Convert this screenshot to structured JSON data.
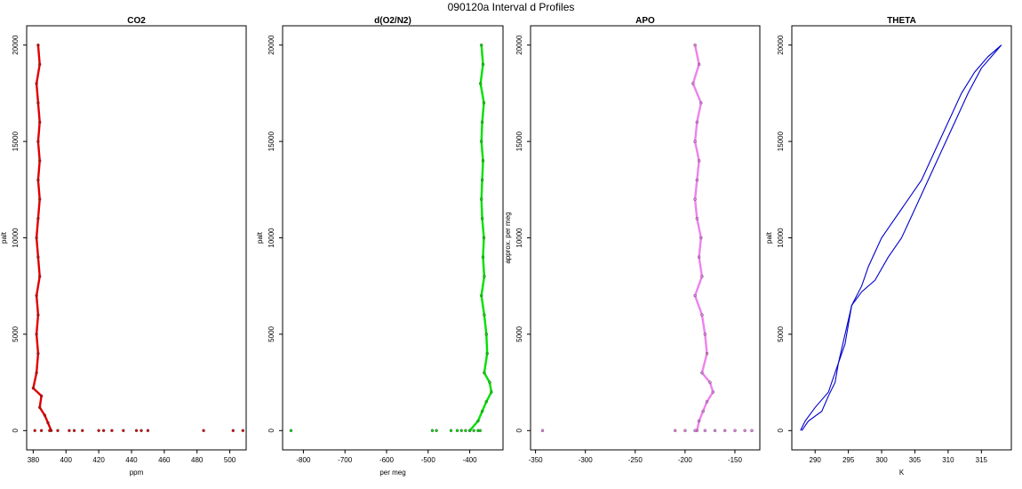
{
  "figure": {
    "title": "090120a   Interval d Profiles"
  },
  "chart_data": [
    {
      "type": "scatter",
      "title": "CO2",
      "xlabel": "ppm",
      "ylabel": "palt",
      "xlim": [
        376,
        510
      ],
      "ylim": [
        -1000,
        21000
      ],
      "xticks": [
        380,
        400,
        420,
        440,
        460,
        480,
        500
      ],
      "yticks": [
        0,
        5000,
        10000,
        15000,
        20000
      ],
      "color": "#e00000",
      "series": [
        {
          "values": [
            [
              383,
              20000
            ],
            [
              384,
              19000
            ],
            [
              382,
              18000
            ],
            [
              383,
              17000
            ],
            [
              384,
              16000
            ],
            [
              383,
              15000
            ],
            [
              384,
              14000
            ],
            [
              383,
              13000
            ],
            [
              384,
              12000
            ],
            [
              383,
              11000
            ],
            [
              382,
              10000
            ],
            [
              383,
              9000
            ],
            [
              384,
              8000
            ],
            [
              382,
              7000
            ],
            [
              383,
              6000
            ],
            [
              382,
              5000
            ],
            [
              383,
              4000
            ],
            [
              382,
              3000
            ],
            [
              380,
              2200
            ],
            [
              385,
              1800
            ],
            [
              384,
              1200
            ],
            [
              387,
              800
            ],
            [
              389,
              400
            ],
            [
              391,
              0
            ]
          ]
        },
        {
          "values": [
            [
              381,
              0
            ],
            [
              385,
              0
            ],
            [
              390,
              0
            ],
            [
              395,
              0
            ],
            [
              402,
              0
            ],
            [
              405,
              0
            ],
            [
              410,
              0
            ],
            [
              420,
              0
            ],
            [
              423,
              0
            ],
            [
              428,
              0
            ],
            [
              435,
              0
            ],
            [
              443,
              0
            ],
            [
              446,
              0
            ],
            [
              450,
              0
            ],
            [
              484,
              0
            ],
            [
              502,
              0
            ],
            [
              508,
              0
            ]
          ]
        }
      ]
    },
    {
      "type": "scatter",
      "title": "d(O2/N2)",
      "xlabel": "per meg",
      "ylabel": "palt",
      "xlim": [
        -850,
        -320
      ],
      "ylim": [
        -1000,
        21000
      ],
      "xticks": [
        -800,
        -700,
        -600,
        -500,
        -400
      ],
      "yticks": [
        0,
        5000,
        10000,
        15000,
        20000
      ],
      "color": "#00e000",
      "series": [
        {
          "values": [
            [
              -372,
              20000
            ],
            [
              -368,
              19000
            ],
            [
              -374,
              18000
            ],
            [
              -366,
              17000
            ],
            [
              -370,
              16000
            ],
            [
              -372,
              15000
            ],
            [
              -368,
              14000
            ],
            [
              -370,
              13000
            ],
            [
              -372,
              12000
            ],
            [
              -370,
              11000
            ],
            [
              -366,
              10000
            ],
            [
              -368,
              9000
            ],
            [
              -365,
              8000
            ],
            [
              -372,
              7000
            ],
            [
              -365,
              6000
            ],
            [
              -360,
              5000
            ],
            [
              -358,
              4000
            ],
            [
              -365,
              3000
            ],
            [
              -352,
              2500
            ],
            [
              -348,
              2000
            ],
            [
              -360,
              1500
            ],
            [
              -370,
              1000
            ],
            [
              -380,
              500
            ],
            [
              -400,
              0
            ]
          ]
        },
        {
          "values": [
            [
              -830,
              0
            ],
            [
              -490,
              0
            ],
            [
              -480,
              0
            ],
            [
              -445,
              0
            ],
            [
              -430,
              0
            ],
            [
              -420,
              0
            ],
            [
              -410,
              0
            ],
            [
              -400,
              0
            ],
            [
              -390,
              0
            ],
            [
              -380,
              0
            ],
            [
              -375,
              0
            ]
          ]
        }
      ]
    },
    {
      "type": "scatter",
      "title": "APO",
      "xlabel": "",
      "ylabel": "approx. per meg",
      "xlim": [
        -355,
        -125
      ],
      "ylim": [
        -1000,
        21000
      ],
      "xticks": [
        -350,
        -300,
        -250,
        -200,
        -150
      ],
      "yticks": [
        0,
        5000,
        10000,
        15000,
        20000
      ],
      "color": "#ee82ee",
      "series": [
        {
          "values": [
            [
              -190,
              20000
            ],
            [
              -186,
              19000
            ],
            [
              -192,
              18000
            ],
            [
              -184,
              17000
            ],
            [
              -188,
              16000
            ],
            [
              -190,
              15000
            ],
            [
              -186,
              14000
            ],
            [
              -188,
              13000
            ],
            [
              -190,
              12000
            ],
            [
              -188,
              11000
            ],
            [
              -184,
              10000
            ],
            [
              -186,
              9000
            ],
            [
              -183,
              8000
            ],
            [
              -190,
              7000
            ],
            [
              -183,
              6000
            ],
            [
              -180,
              5000
            ],
            [
              -178,
              4000
            ],
            [
              -183,
              3000
            ],
            [
              -175,
              2500
            ],
            [
              -172,
              2000
            ],
            [
              -178,
              1500
            ],
            [
              -182,
              1000
            ],
            [
              -186,
              500
            ],
            [
              -188,
              0
            ]
          ]
        },
        {
          "values": [
            [
              -343,
              0
            ],
            [
              -210,
              0
            ],
            [
              -200,
              0
            ],
            [
              -190,
              0
            ],
            [
              -180,
              0
            ],
            [
              -170,
              0
            ],
            [
              -160,
              0
            ],
            [
              -150,
              0
            ],
            [
              -140,
              0
            ],
            [
              -133,
              0
            ]
          ]
        }
      ]
    },
    {
      "type": "line",
      "title": "THETA",
      "xlabel": "K",
      "ylabel": "palt",
      "xlim": [
        286.5,
        319.5
      ],
      "ylim": [
        -1000,
        21000
      ],
      "xticks": [
        290,
        295,
        300,
        305,
        310,
        315
      ],
      "yticks": [
        0,
        5000,
        10000,
        15000,
        20000
      ],
      "color": "#0000cc",
      "series": [
        {
          "values": [
            [
              288,
              0
            ],
            [
              289,
              500
            ],
            [
              291,
              1000
            ],
            [
              292,
              1800
            ],
            [
              293,
              2500
            ],
            [
              293.5,
              3500
            ],
            [
              294.5,
              4500
            ],
            [
              295,
              5500
            ],
            [
              295.5,
              6500
            ],
            [
              297,
              7200
            ],
            [
              299,
              7800
            ],
            [
              301,
              9000
            ],
            [
              303,
              10000
            ],
            [
              305,
              11500
            ],
            [
              307,
              13000
            ],
            [
              309,
              14500
            ],
            [
              311,
              16000
            ],
            [
              313,
              17500
            ],
            [
              315,
              18800
            ],
            [
              317,
              19600
            ],
            [
              318,
              20000
            ]
          ]
        },
        {
          "values": [
            [
              318,
              20000
            ],
            [
              316,
              19400
            ],
            [
              314,
              18600
            ],
            [
              312,
              17500
            ],
            [
              310,
              16000
            ],
            [
              308,
              14500
            ],
            [
              306,
              13000
            ],
            [
              303,
              11500
            ],
            [
              300,
              10000
            ],
            [
              298,
              8500
            ],
            [
              297,
              7500
            ],
            [
              295.5,
              6500
            ],
            [
              294.5,
              5000
            ],
            [
              293.5,
              3500
            ],
            [
              292.5,
              2500
            ],
            [
              292,
              2000
            ],
            [
              290,
              1200
            ],
            [
              288.5,
              500
            ],
            [
              287.8,
              0
            ]
          ]
        }
      ]
    }
  ]
}
